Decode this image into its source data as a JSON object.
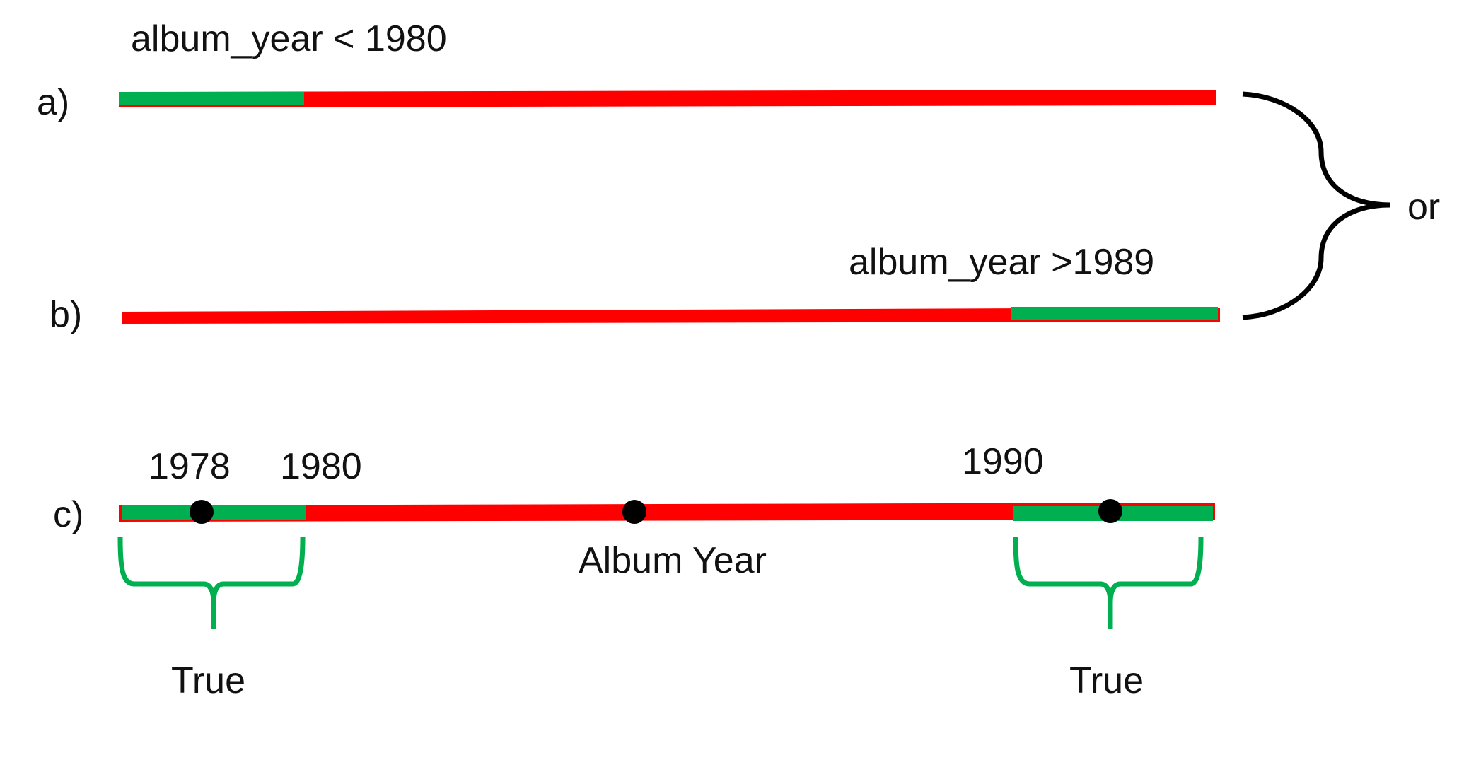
{
  "colors": {
    "false_range": "#ff0000",
    "true_range": "#00b050",
    "ink": "#000000"
  },
  "row_a": {
    "marker": "a)",
    "condition": "album_year < 1980"
  },
  "row_b": {
    "marker": "b)",
    "condition": "album_year >1989"
  },
  "combiner": {
    "label": "or"
  },
  "row_c": {
    "marker": "c)",
    "tick_1978": "1978",
    "tick_1980": "1980",
    "tick_1990": "1990",
    "axis_label": "Album Year",
    "left_result": "True",
    "right_result": "True"
  }
}
